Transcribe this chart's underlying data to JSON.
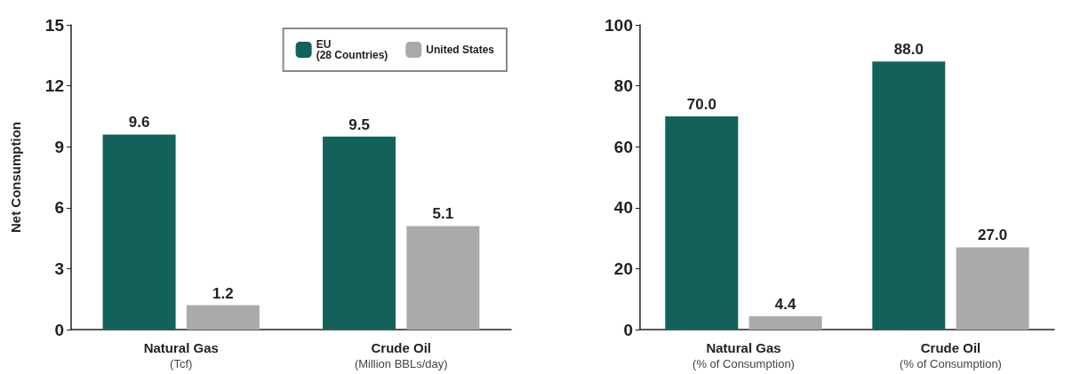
{
  "chart_data": [
    {
      "type": "bar",
      "ylabel": "Net Consumption",
      "categories": [
        "Natural Gas\n(Tcf)",
        "Crude Oil\n(Million BBLs/day)"
      ],
      "series": [
        {
          "name": "EU\n(28 Countries)",
          "color": "#12625a",
          "values": [
            9.6,
            9.5
          ],
          "value_labels": [
            "9.6",
            "9.5"
          ]
        },
        {
          "name": "United States",
          "color": "#aaaaaa",
          "values": [
            1.2,
            5.1
          ],
          "value_labels": [
            "1.2",
            "5.1"
          ]
        }
      ],
      "ylim": [
        0,
        15
      ],
      "yticks": [
        0,
        3,
        6,
        9,
        12,
        15
      ],
      "grid": false,
      "legend": "top right"
    },
    {
      "type": "bar",
      "categories": [
        "Natural Gas\n(% of Consumption)",
        "Crude Oil\n(% of Consumption)"
      ],
      "series": [
        {
          "color": "#12625a",
          "values": [
            70,
            88
          ],
          "value_labels": [
            "70.0",
            "88.0"
          ]
        },
        {
          "color": "#aaaaaa",
          "values": [
            4.4,
            27
          ],
          "value_labels": [
            "4.4",
            "27.0"
          ]
        }
      ],
      "ylim": [
        0,
        100
      ],
      "yticks": [
        0,
        20,
        40,
        60,
        80,
        100
      ],
      "grid": false
    }
  ]
}
